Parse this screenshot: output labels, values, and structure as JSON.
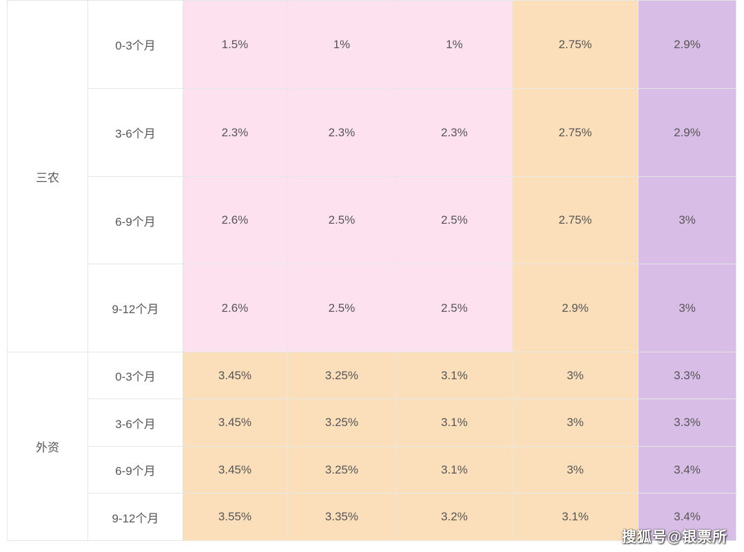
{
  "palette": {
    "pink": "#fde1ef",
    "peach": "#fbdfbb",
    "violet": "#d8bde6",
    "border": "#e6e6e6",
    "text": "#555555"
  },
  "groups": [
    {
      "name": "三农",
      "rows": [
        {
          "term": "0-3个月",
          "cells": [
            {
              "v": "1.5%",
              "c": "pink"
            },
            {
              "v": "1%",
              "c": "pink"
            },
            {
              "v": "1%",
              "c": "pink"
            },
            {
              "v": "2.75%",
              "c": "peach"
            },
            {
              "v": "2.9%",
              "c": "violet"
            }
          ]
        },
        {
          "term": "3-6个月",
          "cells": [
            {
              "v": "2.3%",
              "c": "pink"
            },
            {
              "v": "2.3%",
              "c": "pink"
            },
            {
              "v": "2.3%",
              "c": "pink"
            },
            {
              "v": "2.75%",
              "c": "peach"
            },
            {
              "v": "2.9%",
              "c": "violet"
            }
          ]
        },
        {
          "term": "6-9个月",
          "cells": [
            {
              "v": "2.6%",
              "c": "pink"
            },
            {
              "v": "2.5%",
              "c": "pink"
            },
            {
              "v": "2.5%",
              "c": "pink"
            },
            {
              "v": "2.75%",
              "c": "peach"
            },
            {
              "v": "3%",
              "c": "violet"
            }
          ]
        },
        {
          "term": "9-12个月",
          "cells": [
            {
              "v": "2.6%",
              "c": "pink"
            },
            {
              "v": "2.5%",
              "c": "pink"
            },
            {
              "v": "2.5%",
              "c": "pink"
            },
            {
              "v": "2.9%",
              "c": "peach"
            },
            {
              "v": "3%",
              "c": "violet"
            }
          ]
        }
      ]
    },
    {
      "name": "外资",
      "rows": [
        {
          "term": "0-3个月",
          "cells": [
            {
              "v": "3.45%",
              "c": "peach"
            },
            {
              "v": "3.25%",
              "c": "peach"
            },
            {
              "v": "3.1%",
              "c": "peach"
            },
            {
              "v": "3%",
              "c": "peach"
            },
            {
              "v": "3.3%",
              "c": "violet"
            }
          ]
        },
        {
          "term": "3-6个月",
          "cells": [
            {
              "v": "3.45%",
              "c": "peach"
            },
            {
              "v": "3.25%",
              "c": "peach"
            },
            {
              "v": "3.1%",
              "c": "peach"
            },
            {
              "v": "3%",
              "c": "peach"
            },
            {
              "v": "3.3%",
              "c": "violet"
            }
          ]
        },
        {
          "term": "6-9个月",
          "cells": [
            {
              "v": "3.45%",
              "c": "peach"
            },
            {
              "v": "3.25%",
              "c": "peach"
            },
            {
              "v": "3.1%",
              "c": "peach"
            },
            {
              "v": "3%",
              "c": "peach"
            },
            {
              "v": "3.4%",
              "c": "violet"
            }
          ]
        },
        {
          "term": "9-12个月",
          "cells": [
            {
              "v": "3.55%",
              "c": "peach"
            },
            {
              "v": "3.35%",
              "c": "peach"
            },
            {
              "v": "3.2%",
              "c": "peach"
            },
            {
              "v": "3.1%",
              "c": "peach"
            },
            {
              "v": "3.4%",
              "c": "violet"
            }
          ]
        }
      ]
    }
  ],
  "watermark": "搜狐号@银票所"
}
